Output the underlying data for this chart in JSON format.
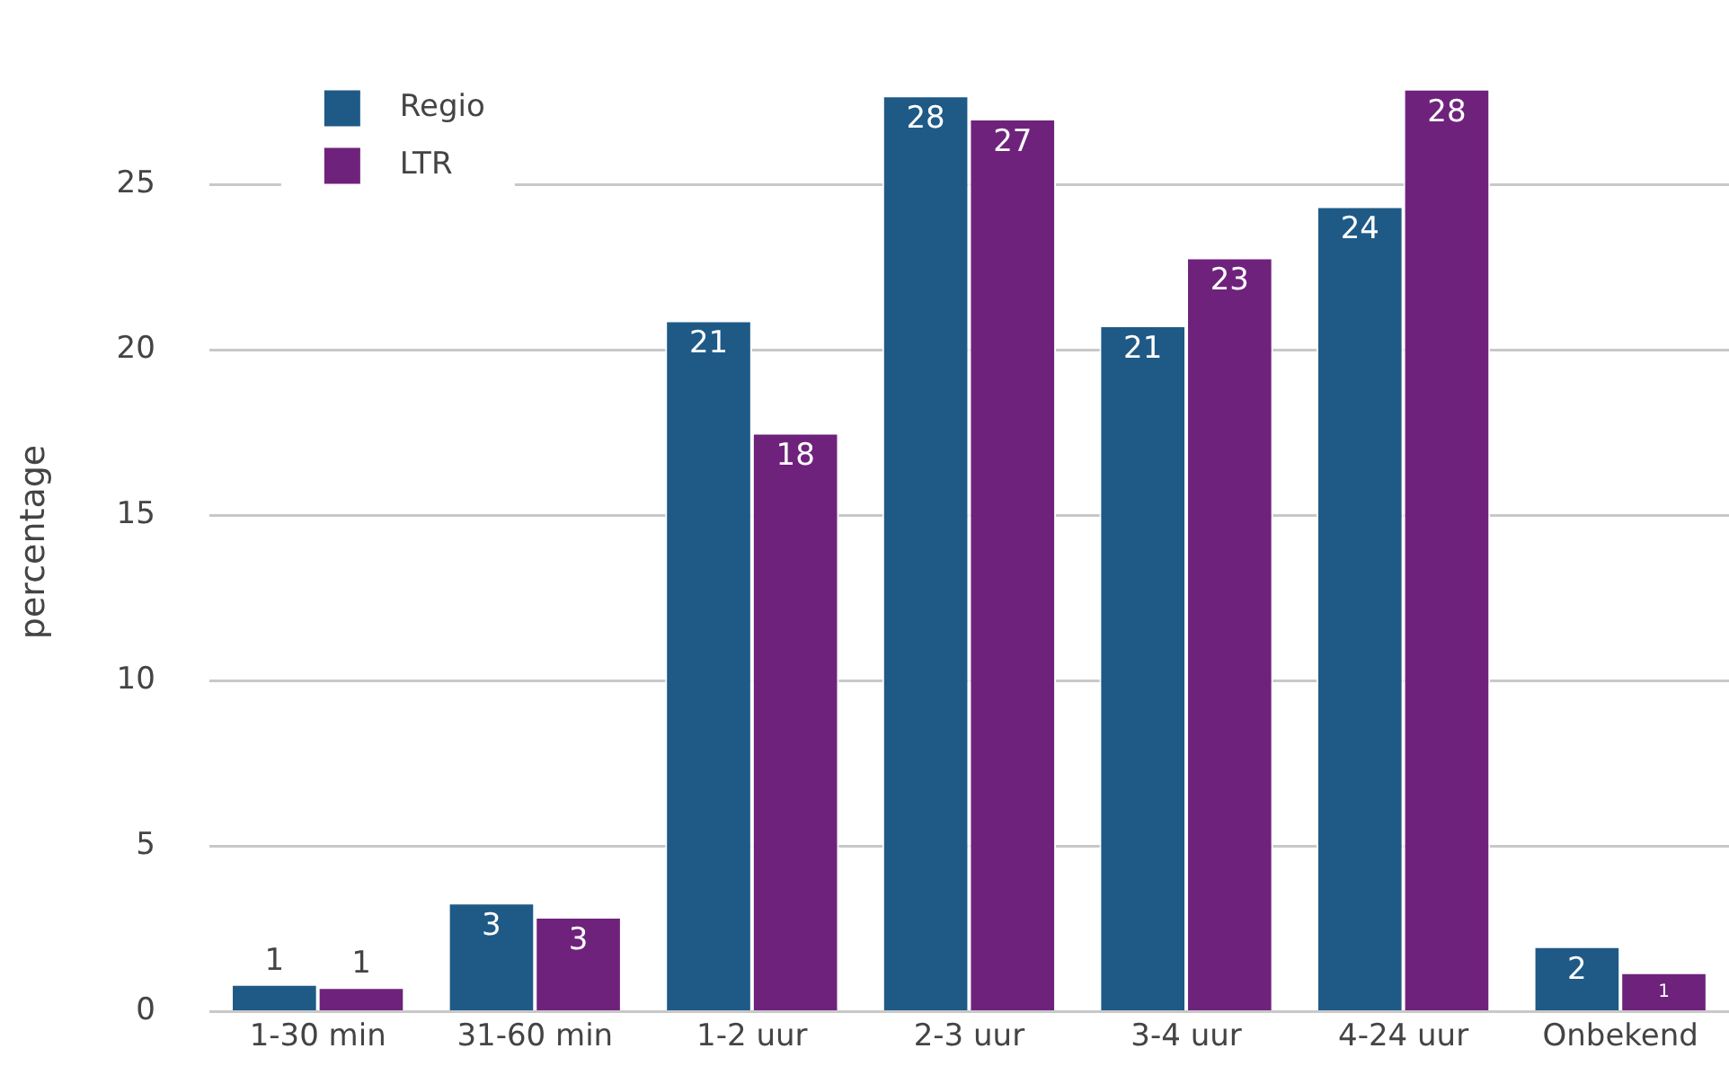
{
  "chart_data": {
    "type": "bar",
    "ylabel": "percentage",
    "categories": [
      "1-30 min",
      "31-60 min",
      "1-2 uur",
      "2-3 uur",
      "3-4 uur",
      "4-24 uur",
      "Onbekend"
    ],
    "series": [
      {
        "name": "Regio",
        "color": "#1f5a87",
        "values": [
          0.84,
          3.3,
          20.9,
          27.7,
          20.75,
          24.35,
          1.98
        ],
        "value_labels": [
          "1",
          "3",
          "21",
          "28",
          "21",
          "24",
          "2"
        ]
      },
      {
        "name": "LTR",
        "color": "#6f227c",
        "values": [
          0.74,
          2.87,
          17.5,
          27.0,
          22.8,
          27.9,
          1.19
        ],
        "value_labels": [
          "1",
          "3",
          "18",
          "27",
          "23",
          "28",
          "1"
        ]
      }
    ],
    "ylim": [
      0,
      28.4
    ],
    "yticks": [
      0,
      5,
      10,
      15,
      20,
      25
    ],
    "grid": "y",
    "legend": "top left"
  }
}
